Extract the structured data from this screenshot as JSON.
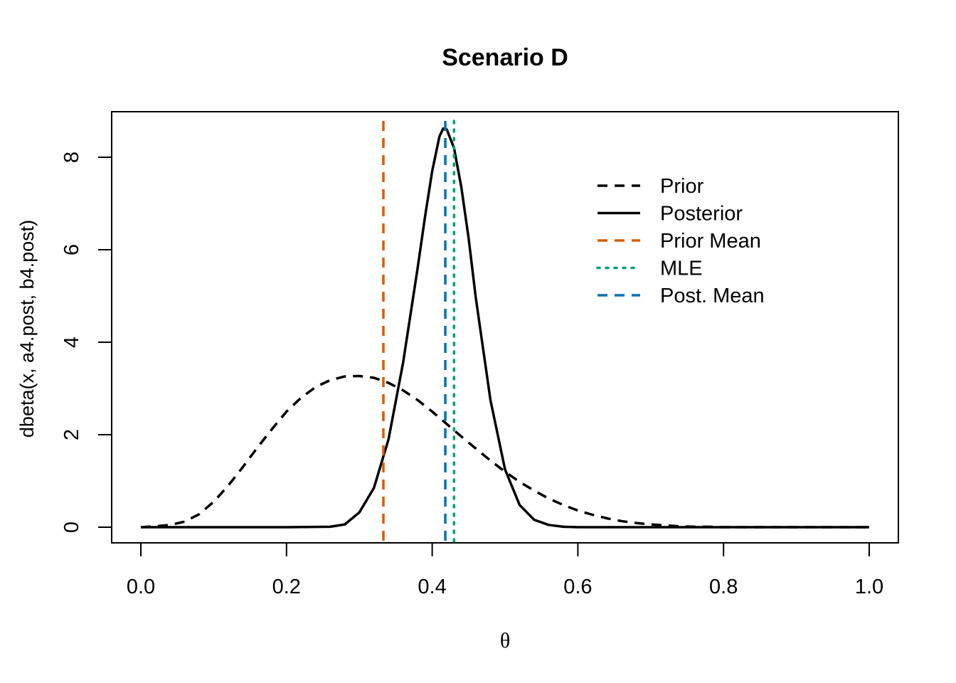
{
  "chart_data": {
    "type": "line",
    "title": "Scenario D",
    "xlabel": "θ",
    "ylabel": "dbeta(x, a4.post, b4.post)",
    "xlim": [
      0,
      1
    ],
    "ylim": [
      0,
      8.7
    ],
    "x_ticks": [
      "0.0",
      "0.2",
      "0.4",
      "0.6",
      "0.8",
      "1.0"
    ],
    "y_ticks": [
      "0",
      "2",
      "4",
      "6",
      "8"
    ],
    "grid": false,
    "legend_position": "top-right",
    "series": [
      {
        "name": "Prior",
        "style": "dashed",
        "color": "#000000",
        "x": [
          0.0,
          0.02,
          0.04,
          0.06,
          0.08,
          0.1,
          0.12,
          0.14,
          0.16,
          0.18,
          0.2,
          0.22,
          0.24,
          0.26,
          0.28,
          0.3,
          0.32,
          0.34,
          0.36,
          0.38,
          0.4,
          0.42,
          0.44,
          0.46,
          0.48,
          0.5,
          0.52,
          0.54,
          0.56,
          0.58,
          0.6,
          0.62,
          0.64,
          0.66,
          0.68,
          0.7,
          0.72,
          0.74,
          0.76,
          0.78,
          0.8,
          0.85,
          0.9,
          0.95,
          1.0
        ],
        "y": [
          0,
          0.02,
          0.05,
          0.12,
          0.28,
          0.55,
          0.9,
          1.3,
          1.72,
          2.12,
          2.5,
          2.8,
          3.03,
          3.18,
          3.26,
          3.27,
          3.23,
          3.12,
          2.96,
          2.75,
          2.5,
          2.23,
          1.96,
          1.7,
          1.44,
          1.2,
          0.98,
          0.79,
          0.62,
          0.48,
          0.36,
          0.27,
          0.19,
          0.13,
          0.09,
          0.06,
          0.04,
          0.02,
          0.01,
          0.01,
          0,
          0,
          0,
          0,
          0
        ]
      },
      {
        "name": "Posterior",
        "style": "solid",
        "color": "#000000",
        "x": [
          0.0,
          0.1,
          0.2,
          0.26,
          0.28,
          0.3,
          0.32,
          0.34,
          0.36,
          0.38,
          0.39,
          0.4,
          0.41,
          0.415,
          0.42,
          0.43,
          0.44,
          0.45,
          0.46,
          0.48,
          0.5,
          0.52,
          0.54,
          0.56,
          0.58,
          0.6,
          0.7,
          0.8,
          0.9,
          1.0
        ],
        "y": [
          0,
          0,
          0,
          0.01,
          0.06,
          0.32,
          0.85,
          1.9,
          3.55,
          5.6,
          6.7,
          7.7,
          8.45,
          8.62,
          8.6,
          8.2,
          7.35,
          6.25,
          4.95,
          2.75,
          1.25,
          0.48,
          0.16,
          0.05,
          0.01,
          0,
          0,
          0,
          0,
          0
        ]
      }
    ],
    "vlines": [
      {
        "name": "Prior Mean",
        "x": 0.333,
        "style": "dashed",
        "color": "#D55E00"
      },
      {
        "name": "MLE",
        "x": 0.43,
        "style": "dotted",
        "color": "#009E73"
      },
      {
        "name": "Post. Mean",
        "x": 0.418,
        "style": "dashed",
        "color": "#0072B2"
      }
    ],
    "legend": [
      {
        "label": "Prior",
        "style": "dashed",
        "color": "#000000"
      },
      {
        "label": "Posterior",
        "style": "solid",
        "color": "#000000"
      },
      {
        "label": "Prior Mean",
        "style": "dashed",
        "color": "#D55E00"
      },
      {
        "label": "MLE",
        "style": "dotted",
        "color": "#009E73"
      },
      {
        "label": "Post. Mean",
        "style": "dashed",
        "color": "#0072B2"
      }
    ]
  }
}
